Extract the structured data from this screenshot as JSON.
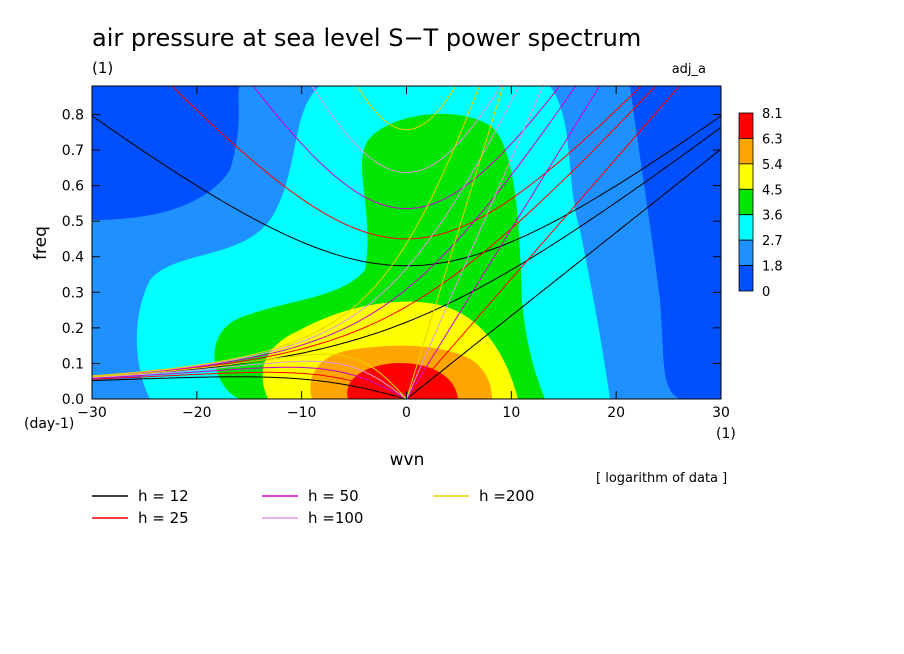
{
  "chart_data": {
    "type": "heatmap",
    "title": "air pressure at sea level S−T power spectrum",
    "title_unit": "(1)",
    "top_right_label": "adj_a",
    "xlabel": "wvn",
    "x_unit": "(1)",
    "ylabel": "freq",
    "y_unit": "(day-1)",
    "xlim": [
      -30,
      30
    ],
    "ylim": [
      0,
      0.88
    ],
    "x_ticks": [
      "−30",
      "−20",
      "−10",
      "0",
      "10",
      "20",
      "30"
    ],
    "y_ticks": [
      "0.0",
      "0.1",
      "0.2",
      "0.3",
      "0.4",
      "0.5",
      "0.6",
      "0.7",
      "0.8"
    ],
    "note": "[ logarithm of data ]",
    "colorbar": {
      "levels": [
        "8.1",
        "6.3",
        "5.4",
        "4.5",
        "3.6",
        "2.7",
        "1.8",
        "0"
      ],
      "colors": [
        "#ff0000",
        "#ffa500",
        "#ffff00",
        "#00e600",
        "#00ffff",
        "#1e90ff",
        "#0050ff"
      ]
    },
    "series": [
      {
        "name": "h = 12",
        "h": 12,
        "color": "#000000"
      },
      {
        "name": "h = 25",
        "h": 25,
        "color": "#ff0000"
      },
      {
        "name": "h = 50",
        "h": 50,
        "color": "#cc00cc"
      },
      {
        "name": "h =100",
        "h": 100,
        "color": "#dd99dd"
      },
      {
        "name": "h =200",
        "h": 200,
        "color": "#e6d200"
      }
    ]
  }
}
